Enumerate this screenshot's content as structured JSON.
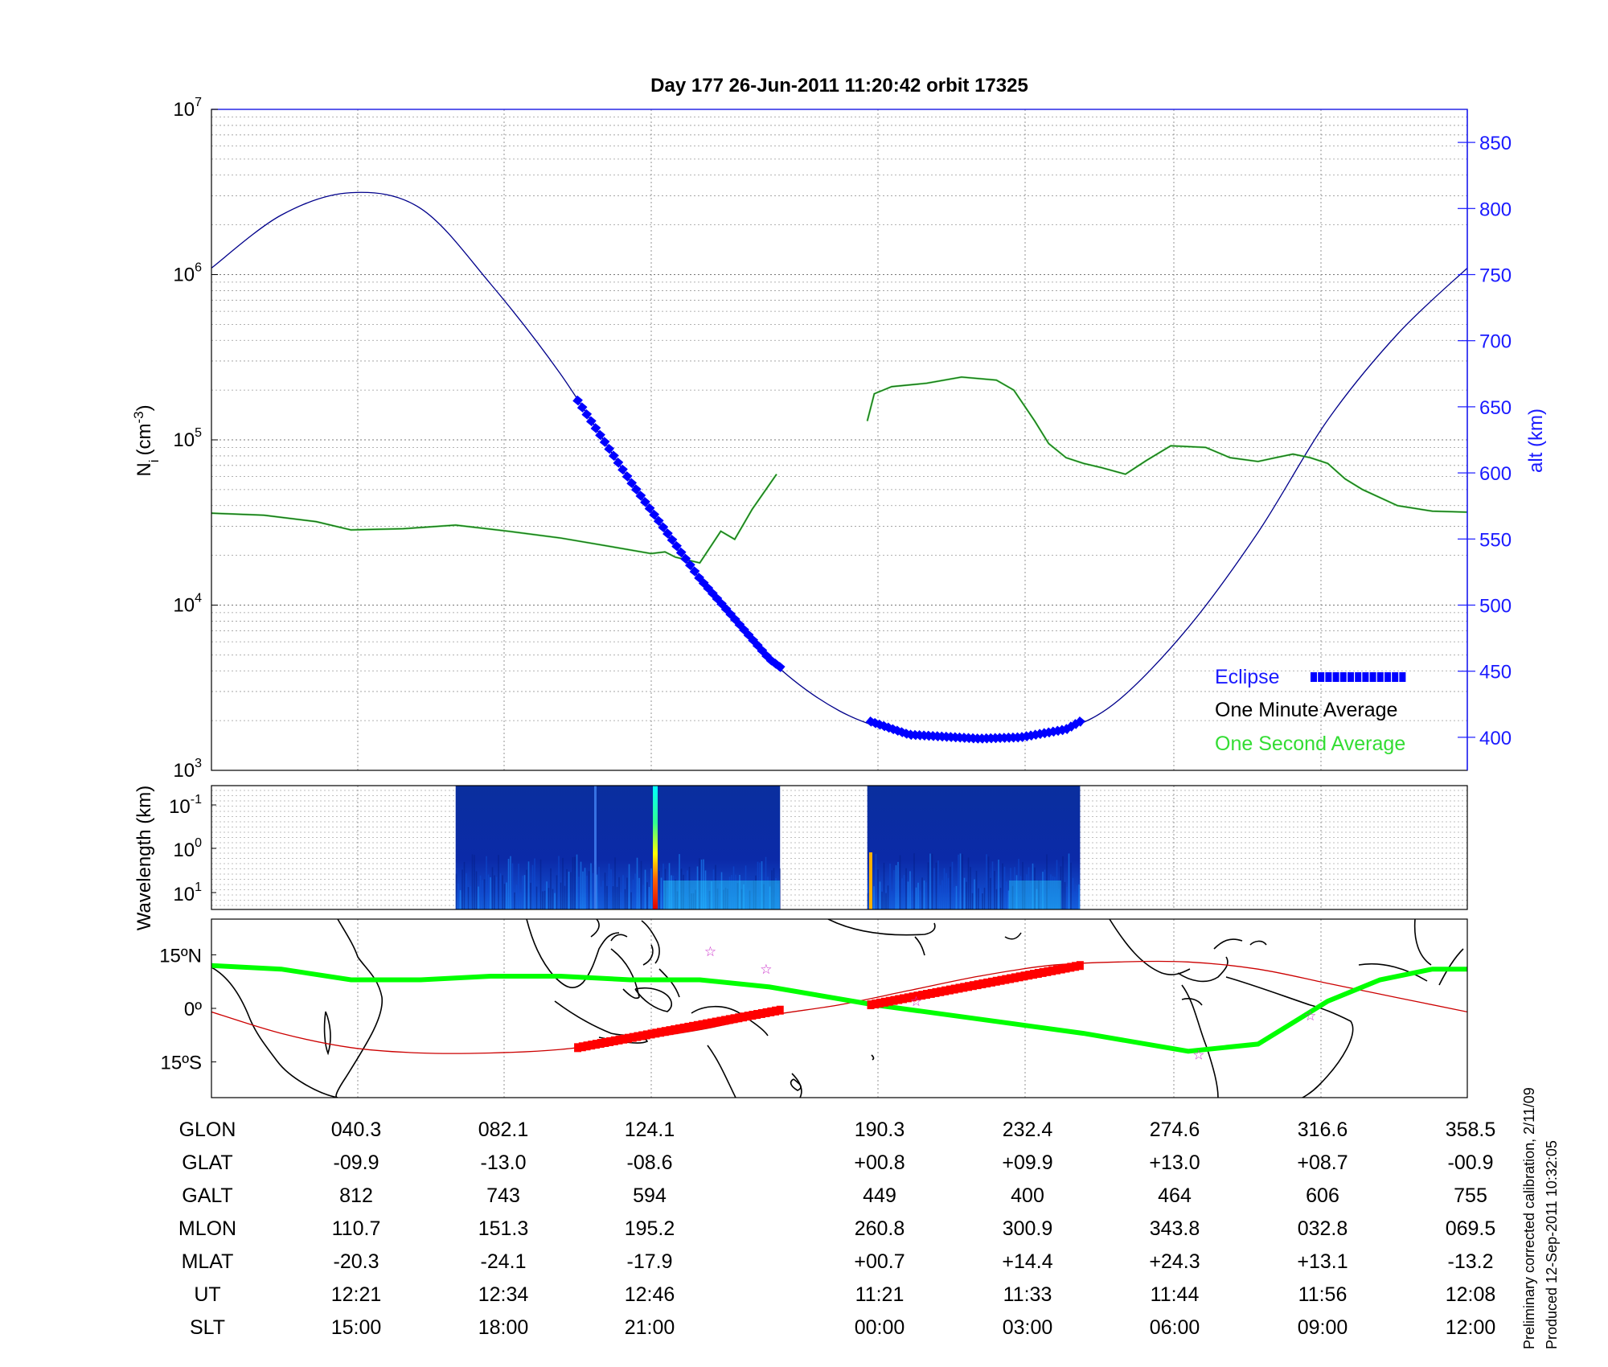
{
  "title": "Day 177  26-Jun-2011 11:20:42   orbit 17325",
  "colors": {
    "altitude": "#00008b",
    "eclipse": "#0000ff",
    "one_minute": "#1a6b1a",
    "one_second": "#33dd33",
    "track": "#00ff00",
    "magnetic_equator": "#cc0000",
    "eclipse_track": "#ff0000",
    "star": "#cc33cc"
  },
  "footer_notes": [
    "Preliminary corrected calibration, 2/11/09",
    "Produced 12-Sep-2011 10:32:05"
  ],
  "table": {
    "row_labels": [
      "GLON",
      "GLAT",
      "GALT",
      "MLON",
      "MLAT",
      "UT",
      "SLT"
    ],
    "columns": [
      [
        "040.3",
        "-09.9",
        "812",
        "110.7",
        "-20.3",
        "12:21",
        "15:00"
      ],
      [
        "082.1",
        "-13.0",
        "743",
        "151.3",
        "-24.1",
        "12:34",
        "18:00"
      ],
      [
        "124.1",
        "-08.6",
        "594",
        "195.2",
        "-17.9",
        "12:46",
        "21:00"
      ],
      [
        "190.3",
        "+00.8",
        "449",
        "260.8",
        "+00.7",
        "11:21",
        "00:00"
      ],
      [
        "232.4",
        "+09.9",
        "400",
        "300.9",
        "+14.4",
        "11:33",
        "03:00"
      ],
      [
        "274.6",
        "+13.0",
        "464",
        "343.8",
        "+24.3",
        "11:44",
        "06:00"
      ],
      [
        "316.6",
        "+08.7",
        "606",
        "032.8",
        "+13.1",
        "11:56",
        "09:00"
      ],
      [
        "358.5",
        "-00.9",
        "755",
        "069.5",
        "-13.2",
        "12:08",
        "12:00"
      ]
    ]
  },
  "chart_data": [
    {
      "type": "line",
      "ylabel": "N",
      "ylabel_sub": "i",
      "ylabel_unit": "(cm",
      "ylabel_sup": "-3",
      "y_scale": "log",
      "ylim": [
        1000,
        10000000
      ],
      "y_ticks": [
        {
          "base": "10",
          "exp": "3"
        },
        {
          "base": "10",
          "exp": "4"
        },
        {
          "base": "10",
          "exp": "5"
        },
        {
          "base": "10",
          "exp": "6"
        },
        {
          "base": "10",
          "exp": "7"
        }
      ],
      "xlim": [
        0,
        360
      ],
      "y2label": "alt (km)",
      "y2lim": [
        375,
        875
      ],
      "y2_ticks": [
        "400",
        "450",
        "500",
        "550",
        "600",
        "650",
        "700",
        "750",
        "800",
        "850"
      ],
      "grid": true,
      "legend": {
        "placement": "lower-right",
        "entries": [
          {
            "label": "Eclipse",
            "color": "#0000ff"
          },
          {
            "label": "One Minute Average",
            "color": "#000000"
          },
          {
            "label": "One Second Average",
            "color": "#33dd33"
          }
        ]
      },
      "series": [
        {
          "name": "One Minute Average",
          "x": [
            0,
            15,
            30,
            40,
            55,
            70,
            85,
            100,
            115,
            126,
            130,
            133,
            140,
            146,
            150,
            155,
            162
          ],
          "y": [
            36000,
            35000,
            32000,
            28500,
            29000,
            30500,
            28000,
            25500,
            22500,
            20500,
            21000,
            19500,
            18000,
            28000,
            25000,
            38000,
            62000
          ]
        },
        {
          "name": "One Minute Average",
          "x": [
            188,
            190,
            195,
            205,
            215,
            225,
            230,
            236,
            240,
            245,
            250,
            255,
            262,
            268,
            275,
            285,
            292,
            300,
            305,
            310,
            315,
            320,
            325,
            330,
            340,
            350,
            360
          ],
          "y": [
            130000,
            190000,
            210000,
            220000,
            240000,
            230000,
            200000,
            130000,
            95000,
            78000,
            72000,
            68000,
            62000,
            75000,
            92000,
            90000,
            78000,
            74000,
            78000,
            82000,
            78000,
            72000,
            58000,
            50000,
            40000,
            37000,
            36500
          ]
        },
        {
          "name": "Altitude",
          "axis": "y2",
          "x": [
            0,
            20,
            40,
            60,
            80,
            100,
            120,
            140,
            160,
            180,
            200,
            220,
            232,
            245,
            260,
            280,
            300,
            320,
            340,
            360
          ],
          "y": [
            755,
            795,
            812,
            800,
            743,
            675,
            594,
            520,
            459,
            420,
            402,
            399,
            400,
            406,
            428,
            483,
            555,
            640,
            705,
            755
          ]
        },
        {
          "name": "Eclipse",
          "axis": "y2",
          "x": [
            105,
            163
          ],
          "y": [
            656,
            444
          ]
        },
        {
          "name": "Eclipse",
          "axis": "y2",
          "x": [
            189,
            249
          ],
          "y": [
            452,
            411
          ]
        }
      ]
    },
    {
      "type": "heatmap",
      "ylabel": "Wavelength (km)",
      "y_ticks": [
        {
          "base": "10",
          "exp": "-1"
        },
        {
          "base": "10",
          "exp": "0"
        },
        {
          "base": "10",
          "exp": "1"
        }
      ],
      "xlim": [
        0,
        360
      ],
      "segments": [
        [
          70,
          163
        ],
        [
          188,
          249
        ]
      ]
    },
    {
      "type": "line",
      "y_ticks": [
        "15ºN",
        "0º",
        "15ºS"
      ],
      "ylim": [
        -25,
        25
      ],
      "xlim": [
        0,
        360
      ],
      "series": [
        {
          "name": "Satellite Track",
          "x": [
            0,
            20,
            40,
            60,
            80,
            100,
            120,
            140,
            160,
            190,
            220,
            250,
            280,
            300,
            310,
            320,
            335,
            350,
            360
          ],
          "y": [
            12,
            11,
            8,
            8,
            9,
            9,
            8,
            8,
            6,
            1,
            -3,
            -7,
            -12,
            -10,
            -4,
            2,
            8,
            11,
            11
          ]
        },
        {
          "name": "Magnetic Equator",
          "x": [
            0,
            20,
            40,
            60,
            80,
            100,
            120,
            140,
            160,
            180,
            200,
            220,
            240,
            260,
            280,
            300,
            320,
            340,
            360
          ],
          "y": [
            -1,
            -7,
            -11,
            -12.5,
            -12.5,
            -11.5,
            -9,
            -6,
            -2,
            1,
            5,
            9,
            12,
            13,
            13,
            11,
            7,
            3,
            -1
          ]
        },
        {
          "name": "Eclipse",
          "x": [
            105,
            163
          ],
          "y": [
            -11,
            -0.5
          ]
        },
        {
          "name": "Eclipse",
          "x": [
            189,
            249
          ],
          "y": [
            1,
            12
          ]
        }
      ]
    }
  ]
}
